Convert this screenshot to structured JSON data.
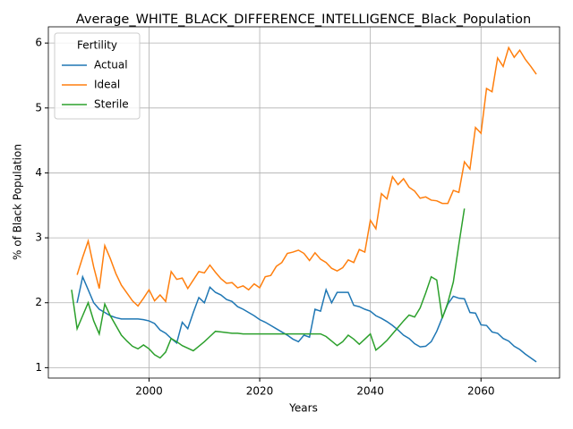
{
  "chart_data": {
    "type": "line",
    "title": "Average_WHITE_BLACK_DIFFERENCE_INTELLIGENCE_Black_Population",
    "x_label": "Years",
    "y_label": "% of Black Population",
    "legend_title": "Fertility",
    "legend_position": "upper left",
    "grid": true,
    "xlim": [
      1981.8,
      2074.2
    ],
    "xticks": [
      2000,
      2020,
      2040,
      2060
    ],
    "ylim": [
      0.84,
      6.25
    ],
    "yticks": [
      1,
      2,
      3,
      4,
      5,
      6
    ],
    "x": [
      1986,
      1987,
      1988,
      1989,
      1990,
      1991,
      1992,
      1993,
      1994,
      1995,
      1996,
      1997,
      1998,
      1999,
      2000,
      2001,
      2002,
      2003,
      2004,
      2005,
      2006,
      2007,
      2008,
      2009,
      2010,
      2011,
      2012,
      2013,
      2014,
      2015,
      2016,
      2017,
      2018,
      2019,
      2020,
      2021,
      2022,
      2023,
      2024,
      2025,
      2026,
      2027,
      2028,
      2029,
      2030,
      2031,
      2032,
      2033,
      2034,
      2035,
      2036,
      2037,
      2038,
      2039,
      2040,
      2041,
      2042,
      2043,
      2044,
      2045,
      2046,
      2047,
      2048,
      2049,
      2050,
      2051,
      2052,
      2053,
      2054,
      2055,
      2056,
      2057,
      2058,
      2059,
      2060,
      2061,
      2062,
      2063,
      2064,
      2065,
      2066,
      2067,
      2068,
      2069,
      2070
    ],
    "series": [
      {
        "name": "Actual",
        "color": "#1f77b4",
        "values": [
          null,
          2.0,
          2.4,
          2.2,
          2.0,
          1.9,
          1.85,
          1.8,
          1.77,
          1.75,
          1.75,
          1.75,
          1.75,
          1.74,
          1.72,
          1.68,
          1.58,
          1.53,
          1.45,
          1.38,
          1.7,
          1.6,
          1.85,
          2.08,
          2.0,
          2.24,
          2.16,
          2.12,
          2.05,
          2.02,
          1.94,
          1.9,
          1.85,
          1.8,
          1.74,
          1.7,
          1.65,
          1.6,
          1.55,
          1.5,
          1.44,
          1.4,
          1.5,
          1.47,
          1.9,
          1.87,
          2.2,
          2.0,
          2.16,
          2.16,
          2.16,
          1.96,
          1.94,
          1.9,
          1.87,
          1.8,
          1.76,
          1.71,
          1.65,
          1.58,
          1.5,
          1.45,
          1.37,
          1.32,
          1.33,
          1.4,
          1.56,
          1.77,
          1.98,
          2.1,
          2.07,
          2.06,
          1.85,
          1.84,
          1.66,
          1.65,
          1.55,
          1.53,
          1.45,
          1.41,
          1.33,
          1.28,
          1.21,
          1.15,
          1.09
        ]
      },
      {
        "name": "Ideal",
        "color": "#ff7f0e",
        "values": [
          null,
          2.43,
          2.7,
          2.95,
          2.55,
          2.22,
          2.88,
          2.68,
          2.45,
          2.27,
          2.15,
          2.03,
          1.95,
          2.07,
          2.2,
          2.03,
          2.12,
          2.02,
          2.48,
          2.36,
          2.38,
          2.22,
          2.35,
          2.48,
          2.46,
          2.58,
          2.47,
          2.37,
          2.3,
          2.31,
          2.23,
          2.26,
          2.2,
          2.29,
          2.23,
          2.4,
          2.42,
          2.56,
          2.62,
          2.76,
          2.78,
          2.81,
          2.76,
          2.65,
          2.77,
          2.67,
          2.62,
          2.53,
          2.49,
          2.54,
          2.66,
          2.62,
          2.82,
          2.78,
          3.27,
          3.14,
          3.68,
          3.6,
          3.94,
          3.82,
          3.91,
          3.78,
          3.72,
          3.61,
          3.63,
          3.58,
          3.57,
          3.53,
          3.53,
          3.73,
          3.7,
          4.17,
          4.06,
          4.7,
          4.61,
          5.3,
          5.25,
          5.77,
          5.64,
          5.93,
          5.78,
          5.89,
          5.75,
          5.64,
          5.52
        ]
      },
      {
        "name": "Sterile",
        "color": "#2ca02c",
        "values": [
          2.2,
          1.6,
          1.8,
          2.0,
          1.72,
          1.52,
          1.98,
          1.8,
          1.65,
          1.5,
          1.41,
          1.33,
          1.29,
          1.35,
          1.29,
          1.2,
          1.15,
          1.24,
          1.45,
          1.4,
          1.34,
          1.3,
          1.26,
          1.33,
          1.4,
          1.48,
          1.56,
          1.55,
          1.54,
          1.53,
          1.53,
          1.52,
          1.52,
          1.52,
          1.52,
          1.52,
          1.52,
          1.52,
          1.52,
          1.52,
          1.52,
          1.52,
          1.52,
          1.52,
          1.52,
          1.52,
          1.48,
          1.41,
          1.34,
          1.4,
          1.5,
          1.44,
          1.36,
          1.44,
          1.52,
          1.27,
          1.34,
          1.42,
          1.52,
          1.62,
          1.72,
          1.81,
          1.78,
          1.92,
          2.15,
          2.4,
          2.35,
          1.76,
          2.0,
          2.32,
          2.9,
          3.45,
          null,
          null,
          null,
          null,
          null,
          null,
          null,
          null,
          null,
          null,
          null,
          null,
          null
        ]
      }
    ]
  }
}
